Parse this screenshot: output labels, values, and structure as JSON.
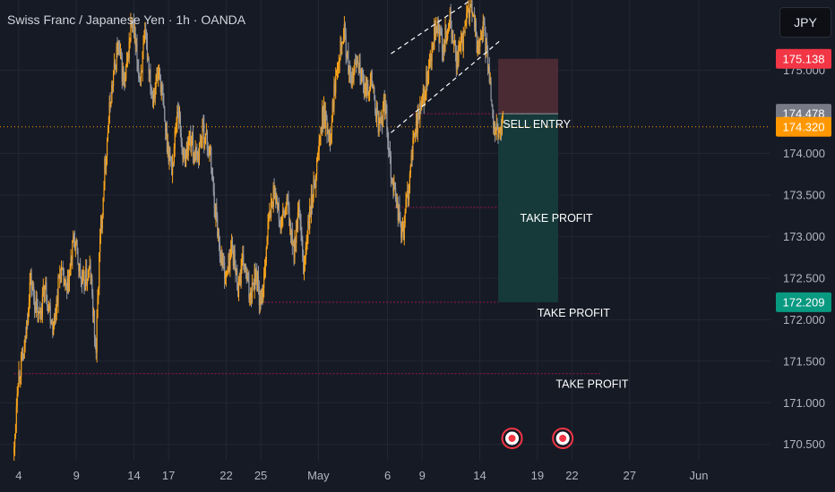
{
  "header": {
    "title": "Swiss Franc / Japanese Yen · 1h · OANDA"
  },
  "currency_button": "JPY",
  "colors": {
    "background": "#161a25",
    "candle_up": "#f7a21b",
    "candle_down": "#9598a1",
    "stop_zone": "#4a2a33",
    "target_zone": "#16393a",
    "badge_red": "#f23645",
    "badge_gray": "#787b86",
    "badge_orange": "#ff9800",
    "badge_green": "#089981"
  },
  "chart_data": {
    "type": "line",
    "ylim": [
      170.4,
      175.9
    ],
    "y_ticks": [
      {
        "value": 175.0,
        "label": "175.000"
      },
      {
        "value": 174.0,
        "label": "174.000"
      },
      {
        "value": 173.5,
        "label": "173.500"
      },
      {
        "value": 173.0,
        "label": "173.000"
      },
      {
        "value": 172.5,
        "label": "172.500"
      },
      {
        "value": 172.0,
        "label": "172.000"
      },
      {
        "value": 171.5,
        "label": "171.500"
      },
      {
        "value": 171.0,
        "label": "171.000"
      },
      {
        "value": 170.5,
        "label": "170.500"
      }
    ],
    "x_ticks": [
      {
        "day": 4,
        "label": "4"
      },
      {
        "day": 9,
        "label": "9"
      },
      {
        "day": 14,
        "label": "14"
      },
      {
        "day": 17,
        "label": "17"
      },
      {
        "day": 22,
        "label": "22"
      },
      {
        "day": 25,
        "label": "25"
      },
      {
        "day": 30,
        "label": "May"
      },
      {
        "day": 36,
        "label": "6"
      },
      {
        "day": 39,
        "label": "9"
      },
      {
        "day": 44,
        "label": "14"
      },
      {
        "day": 49,
        "label": "19"
      },
      {
        "day": 52,
        "label": "22"
      },
      {
        "day": 57,
        "label": "27"
      },
      {
        "day": 63,
        "label": "Jun"
      }
    ],
    "price_path": [
      [
        3.6,
        170.4
      ],
      [
        3.9,
        171.3
      ],
      [
        4.5,
        171.6
      ],
      [
        5.0,
        172.5
      ],
      [
        5.7,
        172.0
      ],
      [
        6.3,
        172.4
      ],
      [
        7.0,
        171.9
      ],
      [
        7.6,
        172.6
      ],
      [
        8.2,
        172.3
      ],
      [
        8.8,
        173.0
      ],
      [
        9.5,
        172.4
      ],
      [
        10.2,
        172.6
      ],
      [
        10.7,
        171.6
      ],
      [
        11.0,
        172.8
      ],
      [
        11.5,
        173.9
      ],
      [
        12.0,
        174.7
      ],
      [
        12.6,
        175.3
      ],
      [
        13.2,
        174.8
      ],
      [
        13.8,
        175.6
      ],
      [
        14.5,
        174.9
      ],
      [
        15.0,
        175.4
      ],
      [
        15.6,
        174.7
      ],
      [
        16.2,
        175.0
      ],
      [
        16.8,
        174.2
      ],
      [
        17.3,
        173.8
      ],
      [
        17.8,
        174.6
      ],
      [
        18.3,
        173.9
      ],
      [
        18.9,
        174.2
      ],
      [
        19.4,
        173.9
      ],
      [
        20.0,
        174.3
      ],
      [
        20.6,
        174.0
      ],
      [
        21.0,
        173.4
      ],
      [
        21.5,
        172.8
      ],
      [
        22.0,
        172.5
      ],
      [
        22.5,
        172.9
      ],
      [
        23.0,
        172.4
      ],
      [
        23.5,
        172.7
      ],
      [
        24.0,
        172.3
      ],
      [
        24.6,
        172.6
      ],
      [
        25.0,
        172.1
      ],
      [
        25.6,
        173.1
      ],
      [
        26.2,
        173.6
      ],
      [
        26.7,
        173.1
      ],
      [
        27.3,
        173.4
      ],
      [
        27.8,
        172.8
      ],
      [
        28.3,
        173.3
      ],
      [
        28.7,
        172.6
      ],
      [
        29.2,
        173.2
      ],
      [
        29.8,
        173.8
      ],
      [
        30.4,
        174.5
      ],
      [
        31.0,
        174.2
      ],
      [
        31.6,
        175.1
      ],
      [
        32.2,
        175.5
      ],
      [
        32.8,
        174.8
      ],
      [
        33.4,
        175.2
      ],
      [
        34.0,
        174.7
      ],
      [
        34.6,
        174.9
      ],
      [
        35.2,
        174.3
      ],
      [
        35.8,
        174.6
      ],
      [
        36.3,
        173.8
      ],
      [
        36.8,
        173.4
      ],
      [
        37.3,
        173.0
      ],
      [
        37.9,
        173.7
      ],
      [
        38.4,
        174.3
      ],
      [
        39.0,
        174.6
      ],
      [
        39.6,
        175.0
      ],
      [
        40.2,
        175.5
      ],
      [
        40.8,
        175.3
      ],
      [
        41.4,
        175.6
      ],
      [
        42.0,
        175.1
      ],
      [
        42.6,
        175.4
      ],
      [
        43.2,
        175.8
      ],
      [
        43.8,
        175.3
      ],
      [
        44.3,
        175.5
      ],
      [
        44.8,
        175.0
      ],
      [
        45.2,
        174.4
      ],
      [
        45.6,
        174.2
      ],
      [
        46.0,
        174.4
      ]
    ],
    "trendlines": [
      {
        "from": [
          36.3,
          175.2
        ],
        "to": [
          43.8,
          175.9
        ]
      },
      {
        "from": [
          36.3,
          174.25
        ],
        "to": [
          45.7,
          175.35
        ]
      }
    ],
    "position": {
      "day_start": 45.6,
      "day_end": 50.8,
      "entry": 174.478,
      "stop": 175.138,
      "target": 172.209
    },
    "levels": [
      {
        "value": 174.478,
        "day_start": 38.2,
        "day_end": 45.6,
        "label": "",
        "label_day": 0
      },
      {
        "value": 173.35,
        "day_start": 36.6,
        "day_end": 45.6,
        "label": "TAKE PROFIT",
        "label_day": 47.5
      },
      {
        "value": 172.209,
        "day_start": 25.0,
        "day_end": 45.6,
        "label": "TAKE PROFIT",
        "label_day": 49.0
      },
      {
        "value": 171.35,
        "day_start": 3.6,
        "day_end": 54.5,
        "label": "TAKE PROFIT",
        "label_day": 50.6
      }
    ],
    "entry_label": {
      "text": "SELL ENTRY",
      "day": 46.0,
      "value": 174.35
    },
    "current_price_line": 174.32,
    "price_badges": [
      {
        "value": 175.138,
        "label": "175.138",
        "color": "#f23645"
      },
      {
        "value": 174.478,
        "label": "174.478",
        "color": "#787b86"
      },
      {
        "value": 174.32,
        "label": "174.320",
        "color": "#ff9800"
      },
      {
        "value": 172.209,
        "label": "172.209",
        "color": "#089981"
      }
    ],
    "event_markers": [
      {
        "day": 46.8
      },
      {
        "day": 51.2
      }
    ],
    "legend": "none",
    "grid": true
  }
}
